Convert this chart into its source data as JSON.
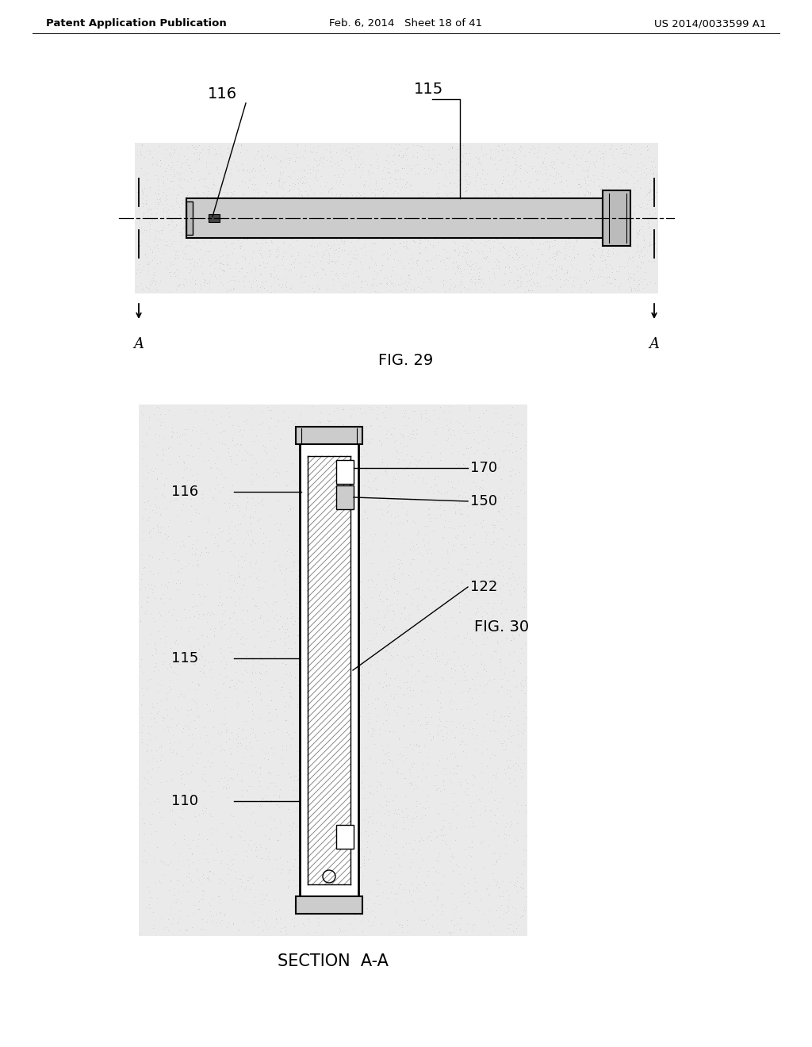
{
  "bg_color": "#ffffff",
  "header_left": "Patent Application Publication",
  "header_mid": "Feb. 6, 2014   Sheet 18 of 41",
  "header_right": "US 2014/0033599 A1",
  "fig29_label": "FIG. 29",
  "fig30_label": "FIG. 30",
  "section_label": "SECTION  A-A",
  "line_color": "#000000",
  "gray_bg": "#dcdcdc",
  "gray_light": "#e8e8e8"
}
